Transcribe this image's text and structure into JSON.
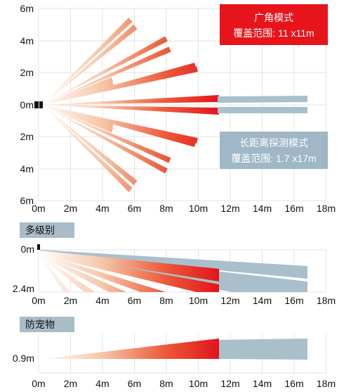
{
  "top": {
    "y_ticks": [
      "6m",
      "4m",
      "2m",
      "0m",
      "2m",
      "4m",
      "6m"
    ],
    "x_ticks": [
      "0m",
      "2m",
      "4m",
      "6m",
      "8m",
      "10m",
      "12m",
      "14m",
      "16m",
      "18m"
    ],
    "wide_box": {
      "line1": "广角模式",
      "line2": "覆盖范围: 11 x11m",
      "color": "#e8141c"
    },
    "long_box": {
      "line1": "长距离探测模式",
      "line2": "覆盖范围: 1.7 x17m",
      "color": "#9fb7c6"
    }
  },
  "middle": {
    "tag": "多级别",
    "y_ticks": [
      "0m",
      "2.4m"
    ],
    "x_ticks": [
      "0m",
      "2m",
      "4m",
      "6m",
      "8m",
      "10m",
      "12m",
      "14m",
      "16m",
      "18m"
    ]
  },
  "bottom": {
    "tag": "防宠物",
    "y_ticks": [
      "0.9m"
    ],
    "x_ticks": [
      "0m",
      "2m",
      "4m",
      "6m",
      "8m",
      "10m",
      "12m",
      "14m",
      "16m",
      "18m"
    ]
  },
  "colors": {
    "beam_red": "#e8141c",
    "beam_blue": "#a9bfcc",
    "grid": "#e3e3e3",
    "tag_bg": "#a9bcc8"
  }
}
